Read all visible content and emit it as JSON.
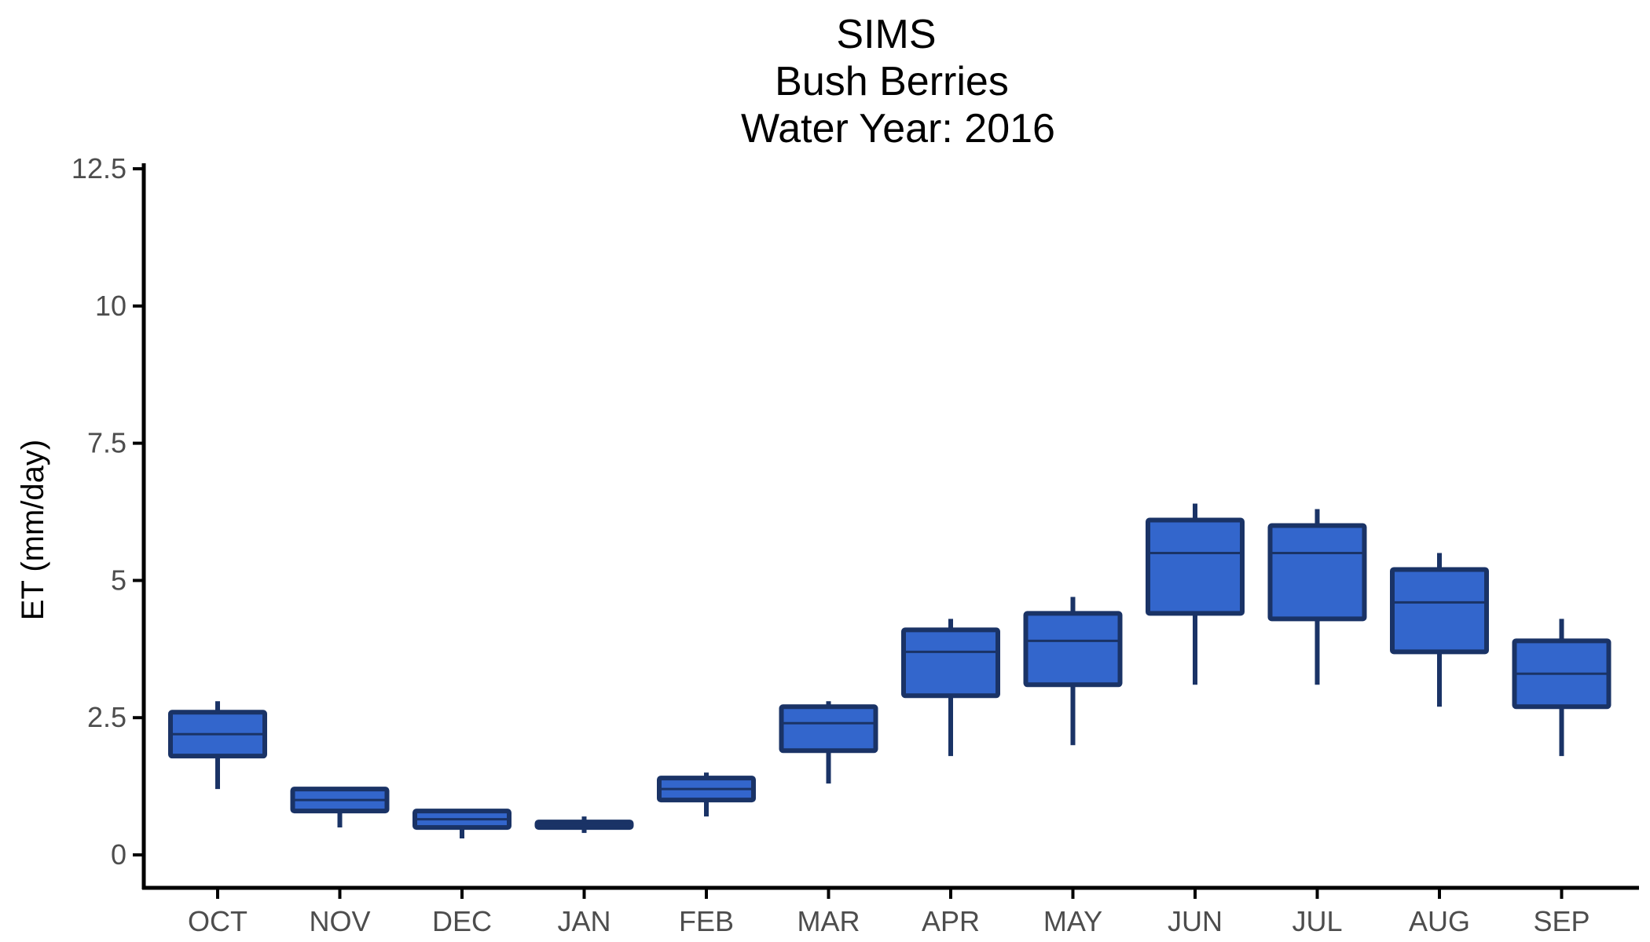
{
  "chart_data": {
    "type": "boxplot",
    "title_lines": [
      "SIMS",
      "Bush Berries",
      "Water Year: 2016"
    ],
    "xlabel": "",
    "ylabel": "ET (mm/day)",
    "ylim": [
      -0.6,
      12.6
    ],
    "y_ticks": [
      0,
      2.5,
      5,
      7.5,
      10,
      12.5
    ],
    "y_tick_labels": [
      "0",
      "2.5",
      "5",
      "7.5",
      "10",
      "12.5"
    ],
    "categories": [
      "OCT",
      "NOV",
      "DEC",
      "JAN",
      "FEB",
      "MAR",
      "APR",
      "MAY",
      "JUN",
      "JUL",
      "AUG",
      "SEP"
    ],
    "boxes": [
      {
        "min": 1.2,
        "q1": 1.8,
        "median": 2.2,
        "q3": 2.6,
        "max": 2.8
      },
      {
        "min": 0.5,
        "q1": 0.8,
        "median": 1.0,
        "q3": 1.2,
        "max": 1.2
      },
      {
        "min": 0.3,
        "q1": 0.5,
        "median": 0.65,
        "q3": 0.8,
        "max": 0.8
      },
      {
        "min": 0.4,
        "q1": 0.5,
        "median": 0.55,
        "q3": 0.6,
        "max": 0.7
      },
      {
        "min": 0.7,
        "q1": 1.0,
        "median": 1.2,
        "q3": 1.4,
        "max": 1.5
      },
      {
        "min": 1.3,
        "q1": 1.9,
        "median": 2.4,
        "q3": 2.7,
        "max": 2.8
      },
      {
        "min": 1.8,
        "q1": 2.9,
        "median": 3.7,
        "q3": 4.1,
        "max": 4.3
      },
      {
        "min": 2.0,
        "q1": 3.1,
        "median": 3.9,
        "q3": 4.4,
        "max": 4.7
      },
      {
        "min": 3.1,
        "q1": 4.4,
        "median": 5.5,
        "q3": 6.1,
        "max": 6.4
      },
      {
        "min": 3.1,
        "q1": 4.3,
        "median": 5.5,
        "q3": 6.0,
        "max": 6.3
      },
      {
        "min": 2.7,
        "q1": 3.7,
        "median": 4.6,
        "q3": 5.2,
        "max": 5.5
      },
      {
        "min": 1.8,
        "q1": 2.7,
        "median": 3.3,
        "q3": 3.9,
        "max": 4.3
      }
    ],
    "grid": false,
    "legend": "none",
    "colors": {
      "box_fill": "#3366cc",
      "box_stroke": "#1a3366",
      "axis": "#000000",
      "tick_label": "#4d4d4d"
    }
  }
}
